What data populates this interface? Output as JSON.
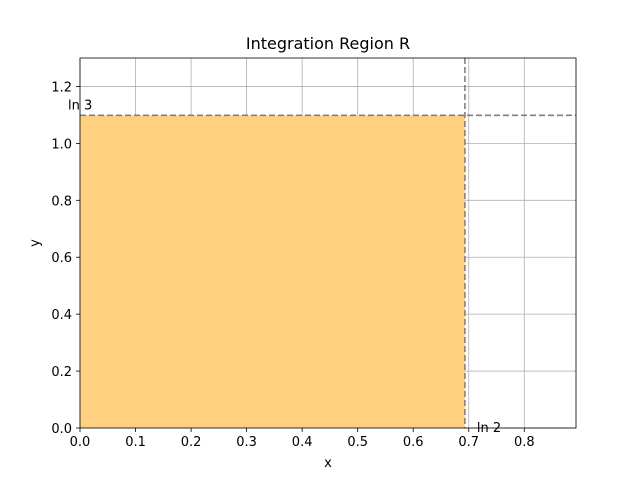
{
  "chart_data": {
    "type": "area",
    "title": "Integration Region R",
    "xlabel": "x",
    "ylabel": "y",
    "xlim": [
      0,
      0.8931
    ],
    "ylim": [
      0,
      1.3
    ],
    "xticks": [
      0.0,
      0.1,
      0.2,
      0.3,
      0.4,
      0.5,
      0.6,
      0.7,
      0.8
    ],
    "xtick_labels": [
      "0.0",
      "0.1",
      "0.2",
      "0.3",
      "0.4",
      "0.5",
      "0.6",
      "0.7",
      "0.8"
    ],
    "yticks": [
      0.0,
      0.2,
      0.4,
      0.6,
      0.8,
      1.0,
      1.2
    ],
    "ytick_labels": [
      "0.0",
      "0.2",
      "0.4",
      "0.6",
      "0.8",
      "1.0",
      "1.2"
    ],
    "grid": true,
    "region": {
      "x": [
        0,
        0.6931
      ],
      "y": [
        0,
        1.0986
      ],
      "color": "#ffd080"
    },
    "reference_lines": [
      {
        "orientation": "vertical",
        "value": 0.6931,
        "label": "ln 2",
        "style": "dashed",
        "color": "#808080"
      },
      {
        "orientation": "horizontal",
        "value": 1.0986,
        "label": "ln 3",
        "style": "dashed",
        "color": "#808080"
      }
    ]
  }
}
